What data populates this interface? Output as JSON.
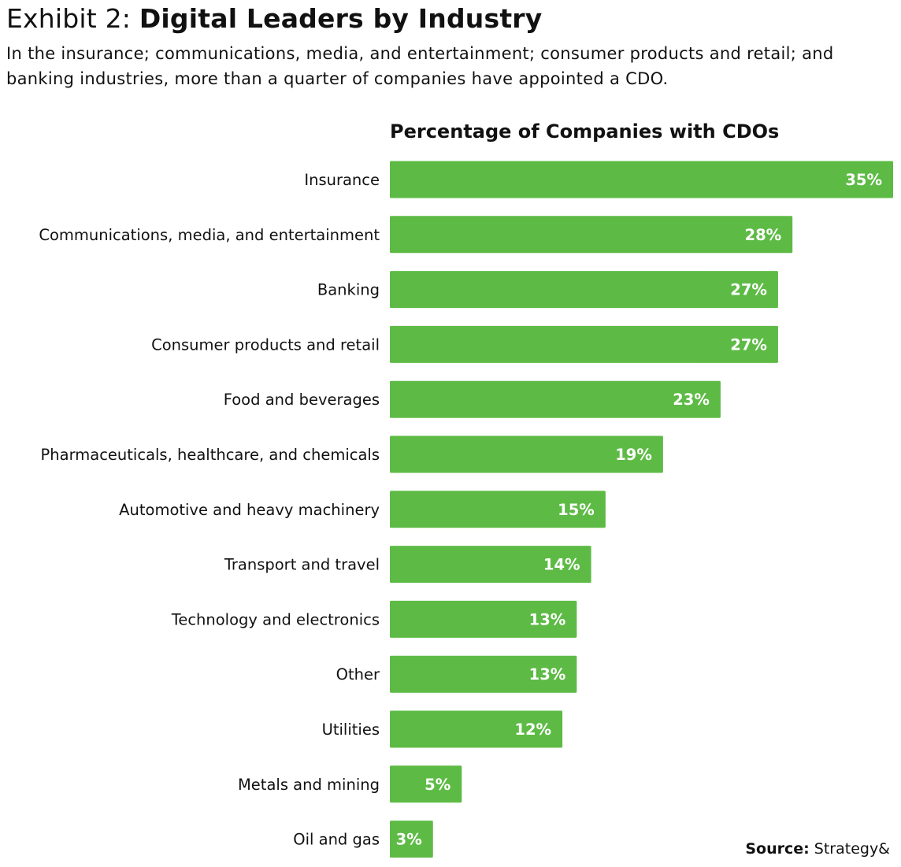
{
  "header": {
    "exhibit_prefix": "Exhibit 2: ",
    "title": "Digital Leaders by Industry",
    "subtitle": "In the insurance; communications, media, and entertainment; consumer products and retail; and banking industries, more than a quarter of companies have appointed a CDO."
  },
  "footer": {
    "source_label": "Source:",
    "source_value": " Strategy&"
  },
  "colors": {
    "bar": "#5dbb45",
    "label_text": "#111111",
    "value_text": "#ffffff"
  },
  "chart_data": {
    "type": "bar",
    "orientation": "horizontal",
    "title": "Percentage of Companies with CDOs",
    "xlabel": "",
    "ylabel": "",
    "grid": false,
    "legend": "none",
    "xlim": [
      0,
      35
    ],
    "categories": [
      "Insurance",
      "Communications, media, and entertainment",
      "Banking",
      "Consumer products and retail",
      "Food and beverages",
      "Pharmaceuticals, healthcare, and chemicals",
      "Automotive and heavy machinery",
      "Transport and travel",
      "Technology and electronics",
      "Other",
      "Utilities",
      "Metals and mining",
      "Oil and gas"
    ],
    "values": [
      35,
      28,
      27,
      27,
      23,
      19,
      15,
      14,
      13,
      13,
      12,
      5,
      3
    ],
    "data_labels": [
      "35%",
      "28%",
      "27%",
      "27%",
      "23%",
      "19%",
      "15%",
      "14%",
      "13%",
      "13%",
      "12%",
      "5%",
      "3%"
    ]
  }
}
